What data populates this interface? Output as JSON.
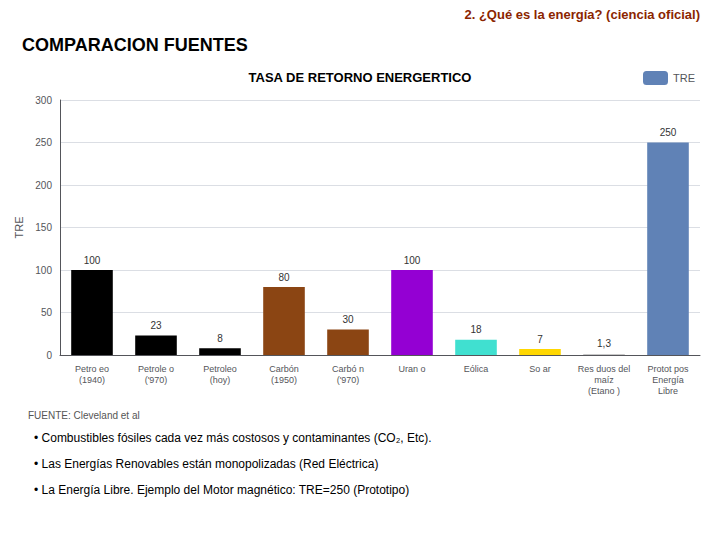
{
  "chart_data": {
    "type": "bar",
    "title": "TASA DE RETORNO ENERGERTICO",
    "ylabel": "TRE",
    "categories": [
      "Petro eo\n(1940)",
      "Petrole o\n('970)",
      "Petroleo\n(hoy)",
      "Carbón\n(1950)",
      "Carbó n\n('970)",
      "Uran o",
      "Eólica",
      "So ar",
      "Res duos del\nmaíz\n(Etano )",
      "Protot pos\nEnergía\nLibre"
    ],
    "series": [
      {
        "name": "TRE",
        "color": "#6082B6",
        "colors": [
          "#000000",
          "#000000",
          "#000000",
          "#8B4513",
          "#8B4513",
          "#9400D3",
          "#40E0D0",
          "#FFD700",
          "#C8C8C8",
          "#6082B6"
        ],
        "values": [
          100,
          23,
          8,
          80,
          30,
          100,
          18,
          7,
          1.3,
          250
        ],
        "value_labels": [
          "100",
          "23",
          "8",
          "80",
          "30",
          "100",
          "18",
          "7",
          "1,3",
          "250"
        ]
      }
    ],
    "data_labels": true,
    "legend": "upper right",
    "ylim": [
      0,
      300
    ],
    "yticks": [
      0,
      50,
      100,
      150,
      200,
      250,
      300
    ],
    "grid": true,
    "annotations": [
      "2. ¿Qué es la energía? (ciencia oficial)",
      "COMPARACION FUENTES",
      "FUENTE: Cleveland et al",
      "• Combustibles fósiles cada vez más costosos y contaminantes (CO₂, Etc).",
      "• Las Energías Renovables están monopolizadas (Red Eléctrica)",
      "• La Energía Libre. Ejemplo del Motor magnético: TRE=250 (Prototipo)"
    ]
  }
}
